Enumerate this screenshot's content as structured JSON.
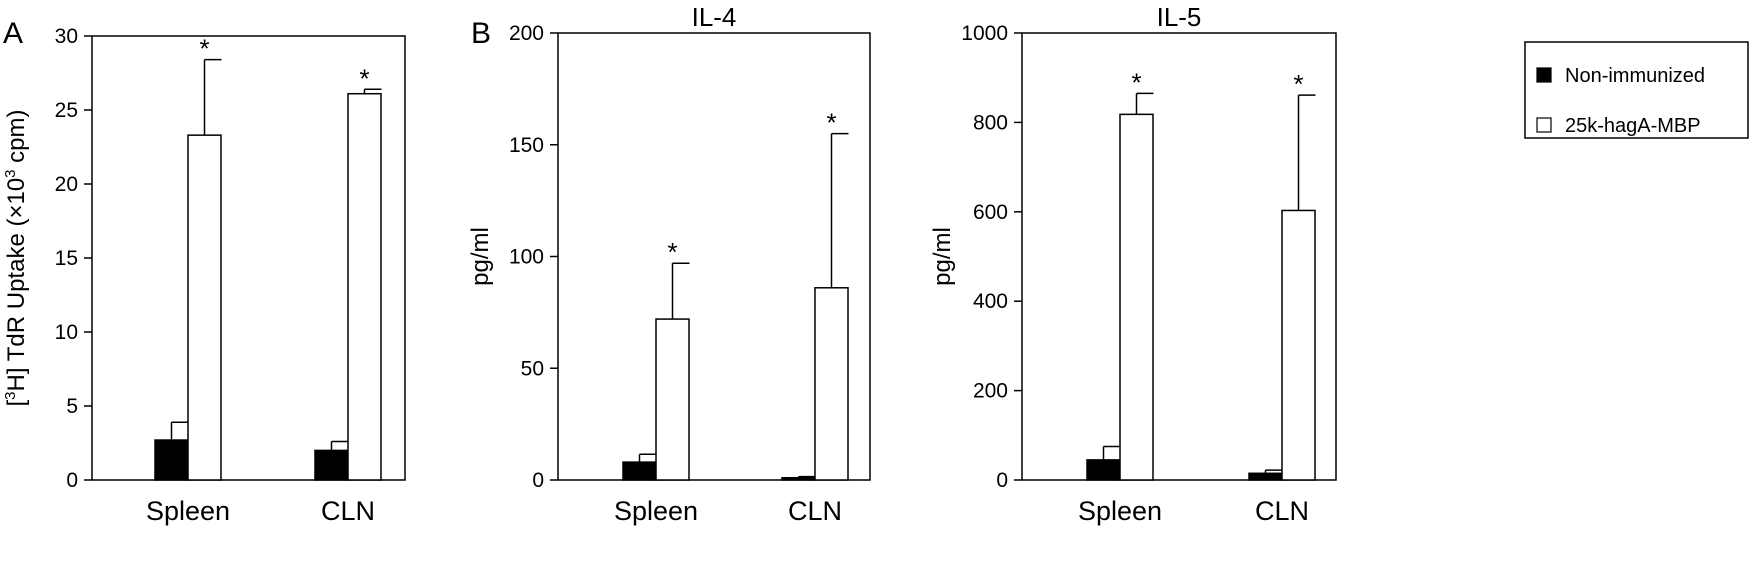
{
  "panels": [
    {
      "letter": "A"
    },
    {
      "letter": "B"
    }
  ],
  "legend": [
    {
      "label": "Non-immunized",
      "fill": "#000000"
    },
    {
      "label": "25k-hagA-MBP",
      "fill": "#ffffff"
    }
  ],
  "chart_data": [
    {
      "type": "bar",
      "title": "",
      "ylabel": "[3H] TdR Uptake (×10^3 cpm)",
      "ylabel_parts": {
        "open": "[",
        "sup1": "3",
        "mid": "H] TdR Uptake (×10",
        "sup2": "3",
        "end": " cpm)"
      },
      "categories": [
        "Spleen",
        "CLN"
      ],
      "ylim": [
        0,
        30
      ],
      "yticks": [
        0,
        5,
        10,
        15,
        20,
        25,
        30
      ],
      "series": [
        {
          "name": "Non-immunized",
          "values": [
            2.7,
            2.0
          ],
          "errors": [
            1.2,
            0.6
          ]
        },
        {
          "name": "25k-hagA-MBP",
          "values": [
            23.3,
            26.1
          ],
          "errors": [
            5.1,
            0.3
          ]
        }
      ],
      "significance": [
        {
          "series": 1,
          "category": 0,
          "label": "*"
        },
        {
          "series": 1,
          "category": 1,
          "label": "*"
        }
      ]
    },
    {
      "type": "bar",
      "title": "IL-4",
      "ylabel": "pg/ml",
      "categories": [
        "Spleen",
        "CLN"
      ],
      "ylim": [
        0,
        200
      ],
      "yticks": [
        0,
        50,
        100,
        150,
        200
      ],
      "series": [
        {
          "name": "Non-immunized",
          "values": [
            8,
            1
          ],
          "errors": [
            3.5,
            0.5
          ]
        },
        {
          "name": "25k-hagA-MBP",
          "values": [
            72,
            86
          ],
          "errors": [
            25,
            69
          ]
        }
      ],
      "significance": [
        {
          "series": 1,
          "category": 0,
          "label": "*"
        },
        {
          "series": 1,
          "category": 1,
          "label": "*"
        }
      ]
    },
    {
      "type": "bar",
      "title": "IL-5",
      "ylabel": "pg/ml",
      "categories": [
        "Spleen",
        "CLN"
      ],
      "ylim": [
        0,
        1000
      ],
      "yticks": [
        0,
        200,
        400,
        600,
        800,
        1000
      ],
      "series": [
        {
          "name": "Non-immunized",
          "values": [
            45,
            15
          ],
          "errors": [
            30,
            7
          ]
        },
        {
          "name": "25k-hagA-MBP",
          "values": [
            818,
            603
          ],
          "errors": [
            47,
            258
          ]
        }
      ],
      "significance": [
        {
          "series": 1,
          "category": 0,
          "label": "*"
        },
        {
          "series": 1,
          "category": 1,
          "label": "*"
        }
      ]
    }
  ]
}
